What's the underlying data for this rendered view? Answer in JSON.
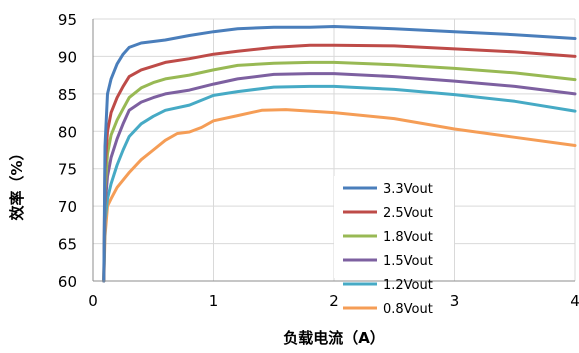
{
  "chart_data": {
    "type": "line",
    "title": "",
    "xlabel": "负载电流（A）",
    "ylabel": "效率（%）",
    "xlim": [
      0,
      4
    ],
    "ylim": [
      60,
      95
    ],
    "x_ticks": [
      0,
      1,
      2,
      3,
      4
    ],
    "y_ticks": [
      60,
      65,
      70,
      75,
      80,
      85,
      90,
      95
    ],
    "grid": "horizontal and vertical",
    "legend_position": "inside lower-right",
    "series": [
      {
        "name": "3.3Vout",
        "color": "#4a7ebb",
        "points": [
          [
            0.09,
            60
          ],
          [
            0.1,
            78
          ],
          [
            0.12,
            85
          ],
          [
            0.15,
            87
          ],
          [
            0.2,
            89
          ],
          [
            0.25,
            90.3
          ],
          [
            0.3,
            91.2
          ],
          [
            0.4,
            91.8
          ],
          [
            0.5,
            92
          ],
          [
            0.6,
            92.2
          ],
          [
            0.8,
            92.8
          ],
          [
            1.0,
            93.3
          ],
          [
            1.2,
            93.7
          ],
          [
            1.5,
            93.9
          ],
          [
            1.8,
            93.9
          ],
          [
            2.0,
            94
          ],
          [
            2.5,
            93.7
          ],
          [
            3.0,
            93.3
          ],
          [
            3.5,
            92.9
          ],
          [
            4.0,
            92.4
          ]
        ]
      },
      {
        "name": "2.5Vout",
        "color": "#be4b48",
        "points": [
          [
            0.09,
            60
          ],
          [
            0.1,
            75
          ],
          [
            0.12,
            80
          ],
          [
            0.15,
            82.5
          ],
          [
            0.2,
            84.5
          ],
          [
            0.25,
            86
          ],
          [
            0.3,
            87.3
          ],
          [
            0.4,
            88.2
          ],
          [
            0.5,
            88.7
          ],
          [
            0.6,
            89.2
          ],
          [
            0.8,
            89.7
          ],
          [
            1.0,
            90.3
          ],
          [
            1.2,
            90.7
          ],
          [
            1.5,
            91.2
          ],
          [
            1.8,
            91.5
          ],
          [
            2.0,
            91.5
          ],
          [
            2.5,
            91.4
          ],
          [
            3.0,
            91
          ],
          [
            3.5,
            90.6
          ],
          [
            4.0,
            90
          ]
        ]
      },
      {
        "name": "1.8Vout",
        "color": "#98b954",
        "points": [
          [
            0.09,
            60
          ],
          [
            0.1,
            72
          ],
          [
            0.12,
            77
          ],
          [
            0.15,
            79.5
          ],
          [
            0.2,
            81.5
          ],
          [
            0.25,
            83
          ],
          [
            0.3,
            84.5
          ],
          [
            0.4,
            85.8
          ],
          [
            0.5,
            86.5
          ],
          [
            0.6,
            87
          ],
          [
            0.8,
            87.5
          ],
          [
            1.0,
            88.2
          ],
          [
            1.2,
            88.8
          ],
          [
            1.5,
            89.1
          ],
          [
            1.8,
            89.2
          ],
          [
            2.0,
            89.2
          ],
          [
            2.5,
            88.9
          ],
          [
            3.0,
            88.4
          ],
          [
            3.5,
            87.8
          ],
          [
            4.0,
            86.9
          ]
        ]
      },
      {
        "name": "1.5Vout",
        "color": "#7d60a0",
        "points": [
          [
            0.09,
            60
          ],
          [
            0.1,
            70
          ],
          [
            0.12,
            74
          ],
          [
            0.15,
            76.5
          ],
          [
            0.2,
            79
          ],
          [
            0.25,
            81
          ],
          [
            0.3,
            82.8
          ],
          [
            0.4,
            83.9
          ],
          [
            0.5,
            84.5
          ],
          [
            0.6,
            85
          ],
          [
            0.8,
            85.5
          ],
          [
            1.0,
            86.3
          ],
          [
            1.2,
            87
          ],
          [
            1.5,
            87.6
          ],
          [
            1.8,
            87.7
          ],
          [
            2.0,
            87.7
          ],
          [
            2.5,
            87.3
          ],
          [
            3.0,
            86.7
          ],
          [
            3.5,
            86
          ],
          [
            4.0,
            85
          ]
        ]
      },
      {
        "name": "1.2Vout",
        "color": "#46aac5",
        "points": [
          [
            0.09,
            60
          ],
          [
            0.1,
            68
          ],
          [
            0.12,
            71
          ],
          [
            0.15,
            73
          ],
          [
            0.2,
            75.5
          ],
          [
            0.25,
            77.5
          ],
          [
            0.3,
            79.3
          ],
          [
            0.4,
            81
          ],
          [
            0.5,
            82
          ],
          [
            0.6,
            82.8
          ],
          [
            0.8,
            83.5
          ],
          [
            1.0,
            84.8
          ],
          [
            1.2,
            85.3
          ],
          [
            1.5,
            85.9
          ],
          [
            1.8,
            86
          ],
          [
            2.0,
            86
          ],
          [
            2.5,
            85.6
          ],
          [
            3.0,
            84.9
          ],
          [
            3.5,
            84
          ],
          [
            4.0,
            82.7
          ]
        ]
      },
      {
        "name": "0.8Vout",
        "color": "#f59d56",
        "points": [
          [
            0.09,
            60
          ],
          [
            0.1,
            66
          ],
          [
            0.12,
            70
          ],
          [
            0.15,
            71
          ],
          [
            0.2,
            72.5
          ],
          [
            0.3,
            74.5
          ],
          [
            0.4,
            76.2
          ],
          [
            0.5,
            77.5
          ],
          [
            0.6,
            78.8
          ],
          [
            0.7,
            79.7
          ],
          [
            0.8,
            79.9
          ],
          [
            0.9,
            80.5
          ],
          [
            1.0,
            81.4
          ],
          [
            1.2,
            82.1
          ],
          [
            1.4,
            82.8
          ],
          [
            1.6,
            82.9
          ],
          [
            1.8,
            82.7
          ],
          [
            2.0,
            82.5
          ],
          [
            2.5,
            81.7
          ],
          [
            3.0,
            80.3
          ],
          [
            3.5,
            79.2
          ],
          [
            4.0,
            78.1
          ]
        ]
      }
    ]
  }
}
